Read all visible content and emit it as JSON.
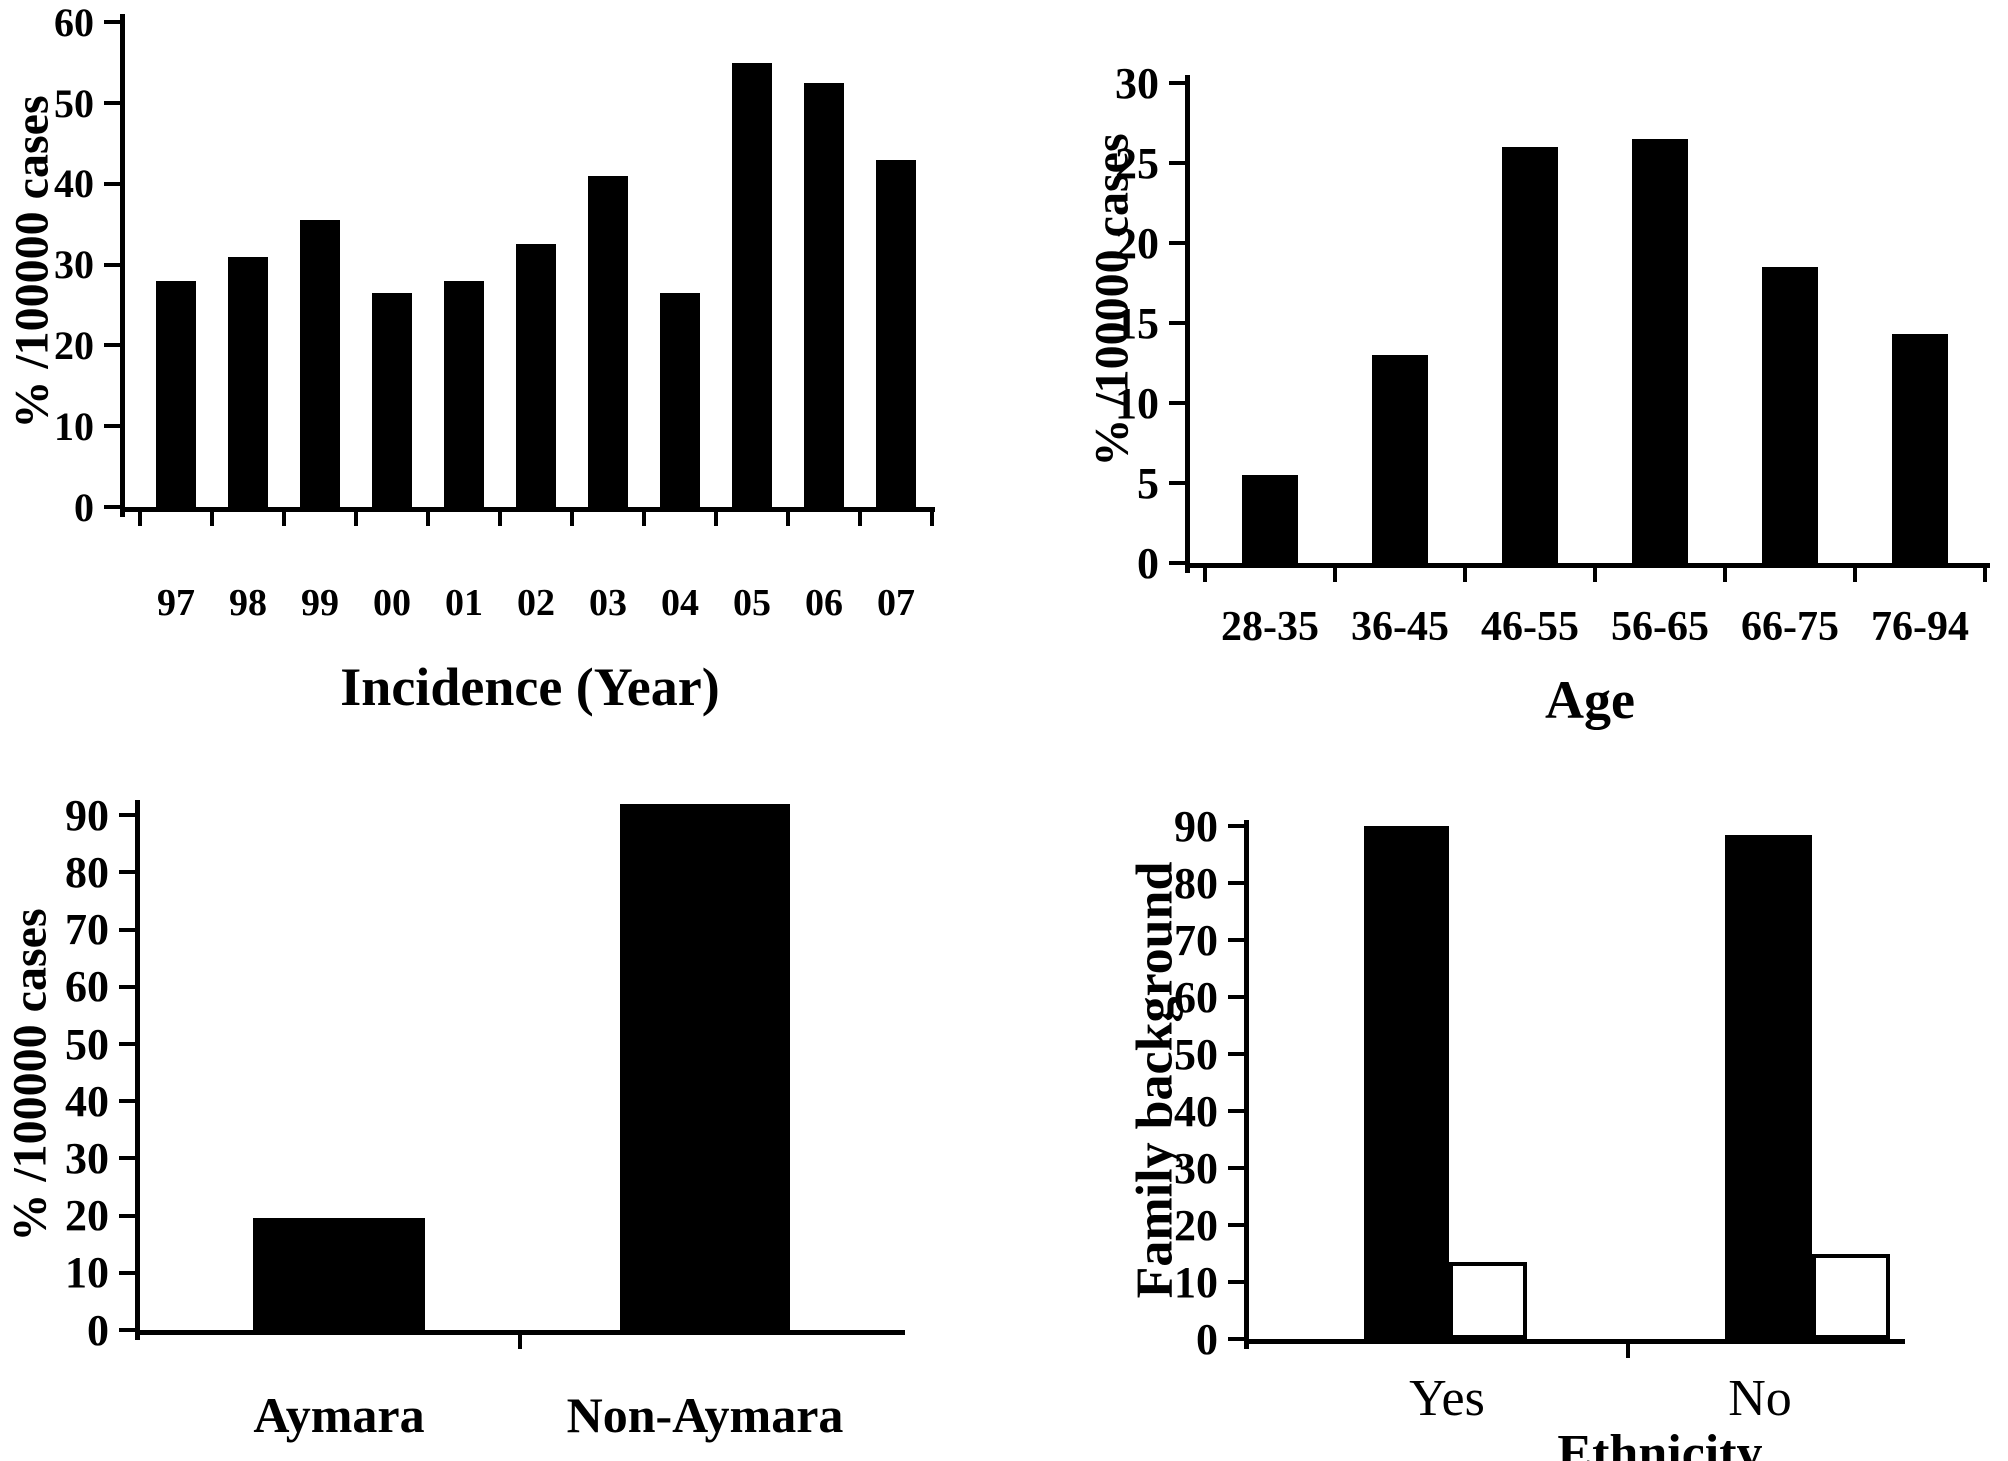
{
  "figure": {
    "background": "#ffffff",
    "bar_fill": "#000000",
    "bar_outline": "#000000",
    "grid": false,
    "legend": null
  },
  "chart_data": [
    {
      "id": "incidence-by-year",
      "type": "bar",
      "title": "",
      "xlabel": "Incidence (Year)",
      "ylabel": "% /100000 cases",
      "categories": [
        "97",
        "98",
        "99",
        "00",
        "01",
        "02",
        "03",
        "04",
        "05",
        "06",
        "07"
      ],
      "values": [
        28,
        31,
        35.5,
        26.5,
        28,
        32.5,
        41,
        26.5,
        55,
        52.5,
        43
      ],
      "yticks": [
        0,
        10,
        20,
        30,
        40,
        50,
        60
      ],
      "ylim": [
        0,
        62
      ],
      "bar_color": "#000000"
    },
    {
      "id": "cases-by-age",
      "type": "bar",
      "title": "",
      "xlabel": "Age",
      "ylabel": "% /100000 cases",
      "categories": [
        "28-35",
        "36-45",
        "46-55",
        "56-65",
        "66-75",
        "76-94"
      ],
      "values": [
        5.5,
        13,
        26,
        26.5,
        18.5,
        14.3
      ],
      "yticks": [
        0,
        5,
        10,
        15,
        20,
        25,
        30
      ],
      "ylim": [
        0,
        30.5
      ],
      "bar_color": "#000000"
    },
    {
      "id": "cases-by-ethnic-group",
      "type": "bar",
      "title": "",
      "xlabel": "",
      "ylabel": "% /100000 cases",
      "categories": [
        "Aymara",
        "Non-Aymara"
      ],
      "values": [
        19.5,
        92
      ],
      "yticks": [
        0,
        10,
        20,
        30,
        40,
        50,
        60,
        70,
        80,
        90
      ],
      "ylim": [
        0,
        95
      ],
      "bar_color": "#000000"
    },
    {
      "id": "family-background-by-ethnicity",
      "type": "bar",
      "title": "",
      "xlabel": "Ethnicity",
      "ylabel": "Family background",
      "categories": [
        "Yes",
        "No"
      ],
      "series": [
        {
          "name": "filled-bar",
          "values": [
            90,
            88.5
          ],
          "fill": "#000000"
        },
        {
          "name": "outlined-bar",
          "values": [
            13.5,
            15
          ],
          "fill": "#ffffff"
        }
      ],
      "yticks": [
        0,
        10,
        20,
        30,
        40,
        50,
        60,
        70,
        80,
        90
      ],
      "ylim": [
        0,
        95
      ]
    }
  ]
}
